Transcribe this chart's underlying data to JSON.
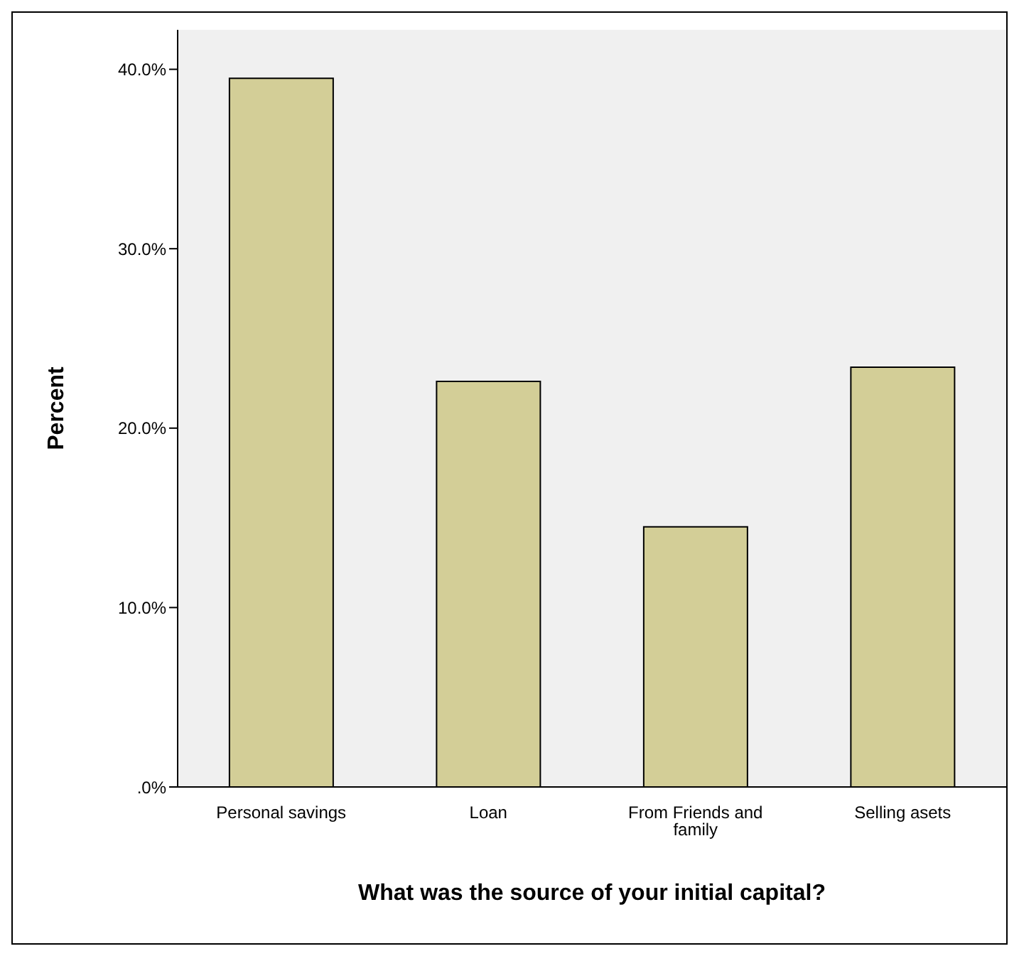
{
  "chart_data": {
    "type": "bar",
    "xlabel": "What was the source of your initial capital?",
    "ylabel": "Percent",
    "categories": [
      "Personal savings",
      "Loan",
      "From Friends and family",
      "Selling asets"
    ],
    "values": [
      39.5,
      22.6,
      14.5,
      23.4
    ],
    "color": "#d3ce97",
    "ylim": [
      0,
      42.2
    ],
    "yticks": [
      {
        "value": 0,
        "label": ".0%"
      },
      {
        "value": 10,
        "label": "10.0%"
      },
      {
        "value": 20,
        "label": "20.0%"
      },
      {
        "value": 30,
        "label": "30.0%"
      },
      {
        "value": 40,
        "label": "40.0%"
      }
    ],
    "grid": false,
    "legend": false
  }
}
